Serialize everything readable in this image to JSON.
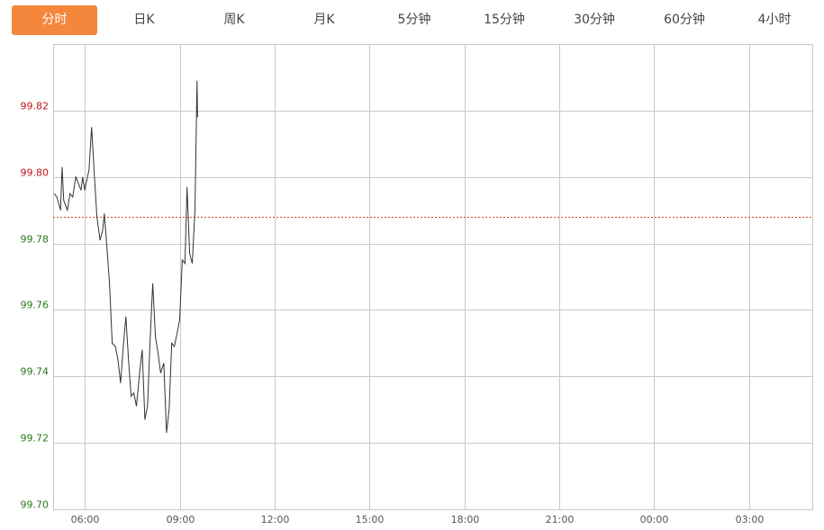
{
  "tabs": [
    {
      "label": "分时",
      "active": true
    },
    {
      "label": "日K"
    },
    {
      "label": "周K"
    },
    {
      "label": "月K"
    },
    {
      "label": "5分钟"
    },
    {
      "label": "15分钟"
    },
    {
      "label": "30分钟"
    },
    {
      "label": "60分钟"
    },
    {
      "label": "4小时"
    }
  ],
  "colors": {
    "accent": "#f5873d",
    "up": "#c0141c",
    "down": "#2a7a1a",
    "line": "#333333",
    "prev_close_line": "#d9431e",
    "grid": "#c8c8c8"
  },
  "chart_data": {
    "type": "line",
    "x_range": [
      "05:00",
      "05:00"
    ],
    "ylim": [
      99.7,
      99.84
    ],
    "grid": true,
    "prev_close": 99.788,
    "y_ticks": [
      "99.70",
      "99.72",
      "99.74",
      "99.76",
      "99.78",
      "99.80",
      "99.82"
    ],
    "x_ticks": [
      "06:00",
      "09:00",
      "12:00",
      "15:00",
      "18:00",
      "21:00",
      "00:00",
      "03:00"
    ],
    "x": [
      "05:02",
      "05:07",
      "05:14",
      "05:17",
      "05:20",
      "05:27",
      "05:32",
      "05:37",
      "05:43",
      "05:48",
      "05:53",
      "05:56",
      "06:00",
      "06:05",
      "06:08",
      "06:13",
      "06:18",
      "06:23",
      "06:29",
      "06:34",
      "06:37",
      "06:42",
      "06:47",
      "06:52",
      "06:58",
      "07:03",
      "07:08",
      "07:13",
      "07:18",
      "07:23",
      "07:28",
      "07:33",
      "07:38",
      "07:44",
      "07:49",
      "07:54",
      "07:59",
      "08:04",
      "08:09",
      "08:14",
      "08:19",
      "08:24",
      "08:30",
      "08:35",
      "08:40",
      "08:45",
      "08:50",
      "08:55",
      "09:00",
      "09:05",
      "09:10",
      "09:14",
      "09:19",
      "09:24",
      "09:29",
      "09:33",
      "09:34"
    ],
    "y": [
      99.795,
      99.794,
      99.79,
      99.803,
      99.793,
      99.79,
      99.795,
      99.794,
      99.8,
      99.798,
      99.796,
      99.8,
      99.796,
      99.8,
      99.802,
      99.815,
      99.801,
      99.788,
      99.781,
      99.784,
      99.789,
      99.779,
      99.768,
      99.75,
      99.749,
      99.745,
      99.738,
      99.749,
      99.758,
      99.745,
      99.734,
      99.735,
      99.731,
      99.741,
      99.748,
      99.727,
      99.731,
      99.751,
      99.768,
      99.752,
      99.747,
      99.741,
      99.744,
      99.723,
      99.73,
      99.75,
      99.749,
      99.753,
      99.757,
      99.775,
      99.774,
      99.797,
      99.777,
      99.774,
      99.79,
      99.829,
      99.818
    ]
  }
}
